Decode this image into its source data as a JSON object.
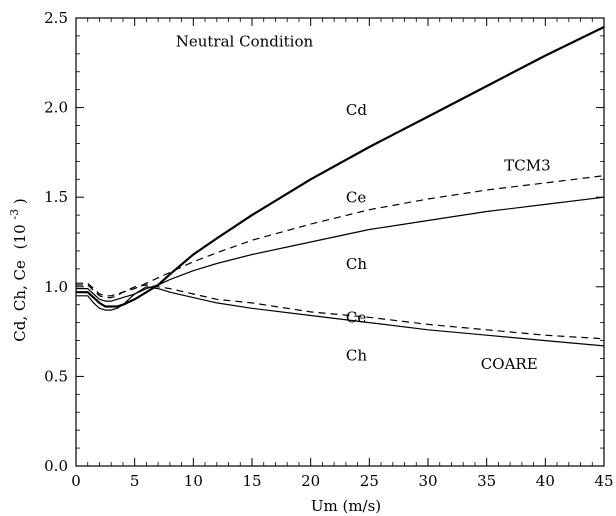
{
  "chart_data": {
    "type": "line",
    "title": "",
    "xlabel": "Um (m/s)",
    "ylabel": "Cd, Ch, Ce",
    "ylabel_exponent": "-3",
    "ylabel_prefix": "(10",
    "ylabel_suffix": ")",
    "xlim": [
      0,
      45
    ],
    "ylim": [
      0,
      2.5
    ],
    "xticks": [
      0,
      5,
      10,
      15,
      20,
      25,
      30,
      35,
      40,
      45
    ],
    "yticks": [
      0.0,
      0.5,
      1.0,
      1.5,
      2.0,
      2.5
    ],
    "ytick_labels": [
      "0.0",
      "0.5",
      "1.0",
      "1.5",
      "2.0",
      "2.5"
    ],
    "xtick_labels": [
      "0",
      "5",
      "10",
      "15",
      "20",
      "25",
      "30",
      "35",
      "40",
      "45"
    ],
    "grid": false,
    "series": [
      {
        "name": "Cd",
        "style": "solid-bold",
        "x": [
          0,
          1,
          1.5,
          2,
          2.5,
          3,
          3.5,
          4,
          5,
          6,
          7,
          8,
          10,
          12,
          15,
          20,
          25,
          30,
          35,
          40,
          45
        ],
        "y": [
          0.97,
          0.97,
          0.94,
          0.91,
          0.89,
          0.89,
          0.89,
          0.9,
          0.93,
          0.97,
          1.01,
          1.07,
          1.18,
          1.27,
          1.4,
          1.6,
          1.78,
          1.95,
          2.12,
          2.29,
          2.45
        ]
      },
      {
        "name": "Ce",
        "group": "TCM3",
        "style": "dashed",
        "x": [
          0,
          1,
          1.5,
          2,
          2.5,
          3,
          3.5,
          4,
          5,
          6,
          7,
          8,
          10,
          12,
          15,
          20,
          25,
          30,
          35,
          40,
          45
        ],
        "y": [
          1.02,
          1.02,
          0.99,
          0.96,
          0.95,
          0.95,
          0.96,
          0.97,
          0.99,
          1.02,
          1.05,
          1.08,
          1.14,
          1.19,
          1.26,
          1.35,
          1.43,
          1.49,
          1.54,
          1.58,
          1.62
        ]
      },
      {
        "name": "Ch",
        "group": "TCM3",
        "style": "solid",
        "x": [
          0,
          1,
          1.5,
          2,
          2.5,
          3,
          3.5,
          4,
          5,
          6,
          7,
          8,
          10,
          12,
          15,
          20,
          25,
          30,
          35,
          40,
          45
        ],
        "y": [
          0.99,
          0.99,
          0.96,
          0.93,
          0.92,
          0.92,
          0.93,
          0.94,
          0.96,
          0.99,
          1.01,
          1.04,
          1.09,
          1.13,
          1.18,
          1.25,
          1.32,
          1.37,
          1.42,
          1.46,
          1.5
        ]
      },
      {
        "name": "Ce",
        "group": "COARE",
        "style": "dashed",
        "x": [
          0,
          1,
          1.5,
          2,
          2.5,
          3,
          3.5,
          4,
          5,
          6,
          7,
          8,
          10,
          12,
          15,
          20,
          25,
          30,
          35,
          40,
          45
        ],
        "y": [
          1.01,
          1.01,
          0.98,
          0.95,
          0.94,
          0.94,
          0.95,
          0.97,
          1.0,
          1.01,
          1.0,
          0.99,
          0.96,
          0.93,
          0.91,
          0.86,
          0.83,
          0.79,
          0.76,
          0.73,
          0.71
        ]
      },
      {
        "name": "Ch",
        "group": "COARE",
        "style": "solid",
        "x": [
          0,
          1,
          1.5,
          2,
          2.5,
          3,
          3.5,
          4,
          5,
          6,
          7,
          8,
          10,
          12,
          15,
          20,
          25,
          30,
          35,
          40,
          45
        ],
        "y": [
          0.95,
          0.95,
          0.91,
          0.88,
          0.87,
          0.87,
          0.88,
          0.9,
          0.96,
          1.0,
          0.99,
          0.97,
          0.94,
          0.91,
          0.88,
          0.84,
          0.8,
          0.76,
          0.73,
          0.7,
          0.67
        ]
      }
    ],
    "annotations": [
      {
        "text": "Neutral Condition",
        "x": 8.5,
        "y": 2.34
      },
      {
        "text": "Cd",
        "x": 23,
        "y": 1.96
      },
      {
        "text": "TCM3",
        "x": 36.5,
        "y": 1.65
      },
      {
        "text": "Ce",
        "x": 23,
        "y": 1.47
      },
      {
        "text": "Ch",
        "x": 23,
        "y": 1.1
      },
      {
        "text": "Ce",
        "x": 23,
        "y": 0.8
      },
      {
        "text": "Ch",
        "x": 23,
        "y": 0.59
      },
      {
        "text": "COARE",
        "x": 34.5,
        "y": 0.54
      }
    ]
  }
}
